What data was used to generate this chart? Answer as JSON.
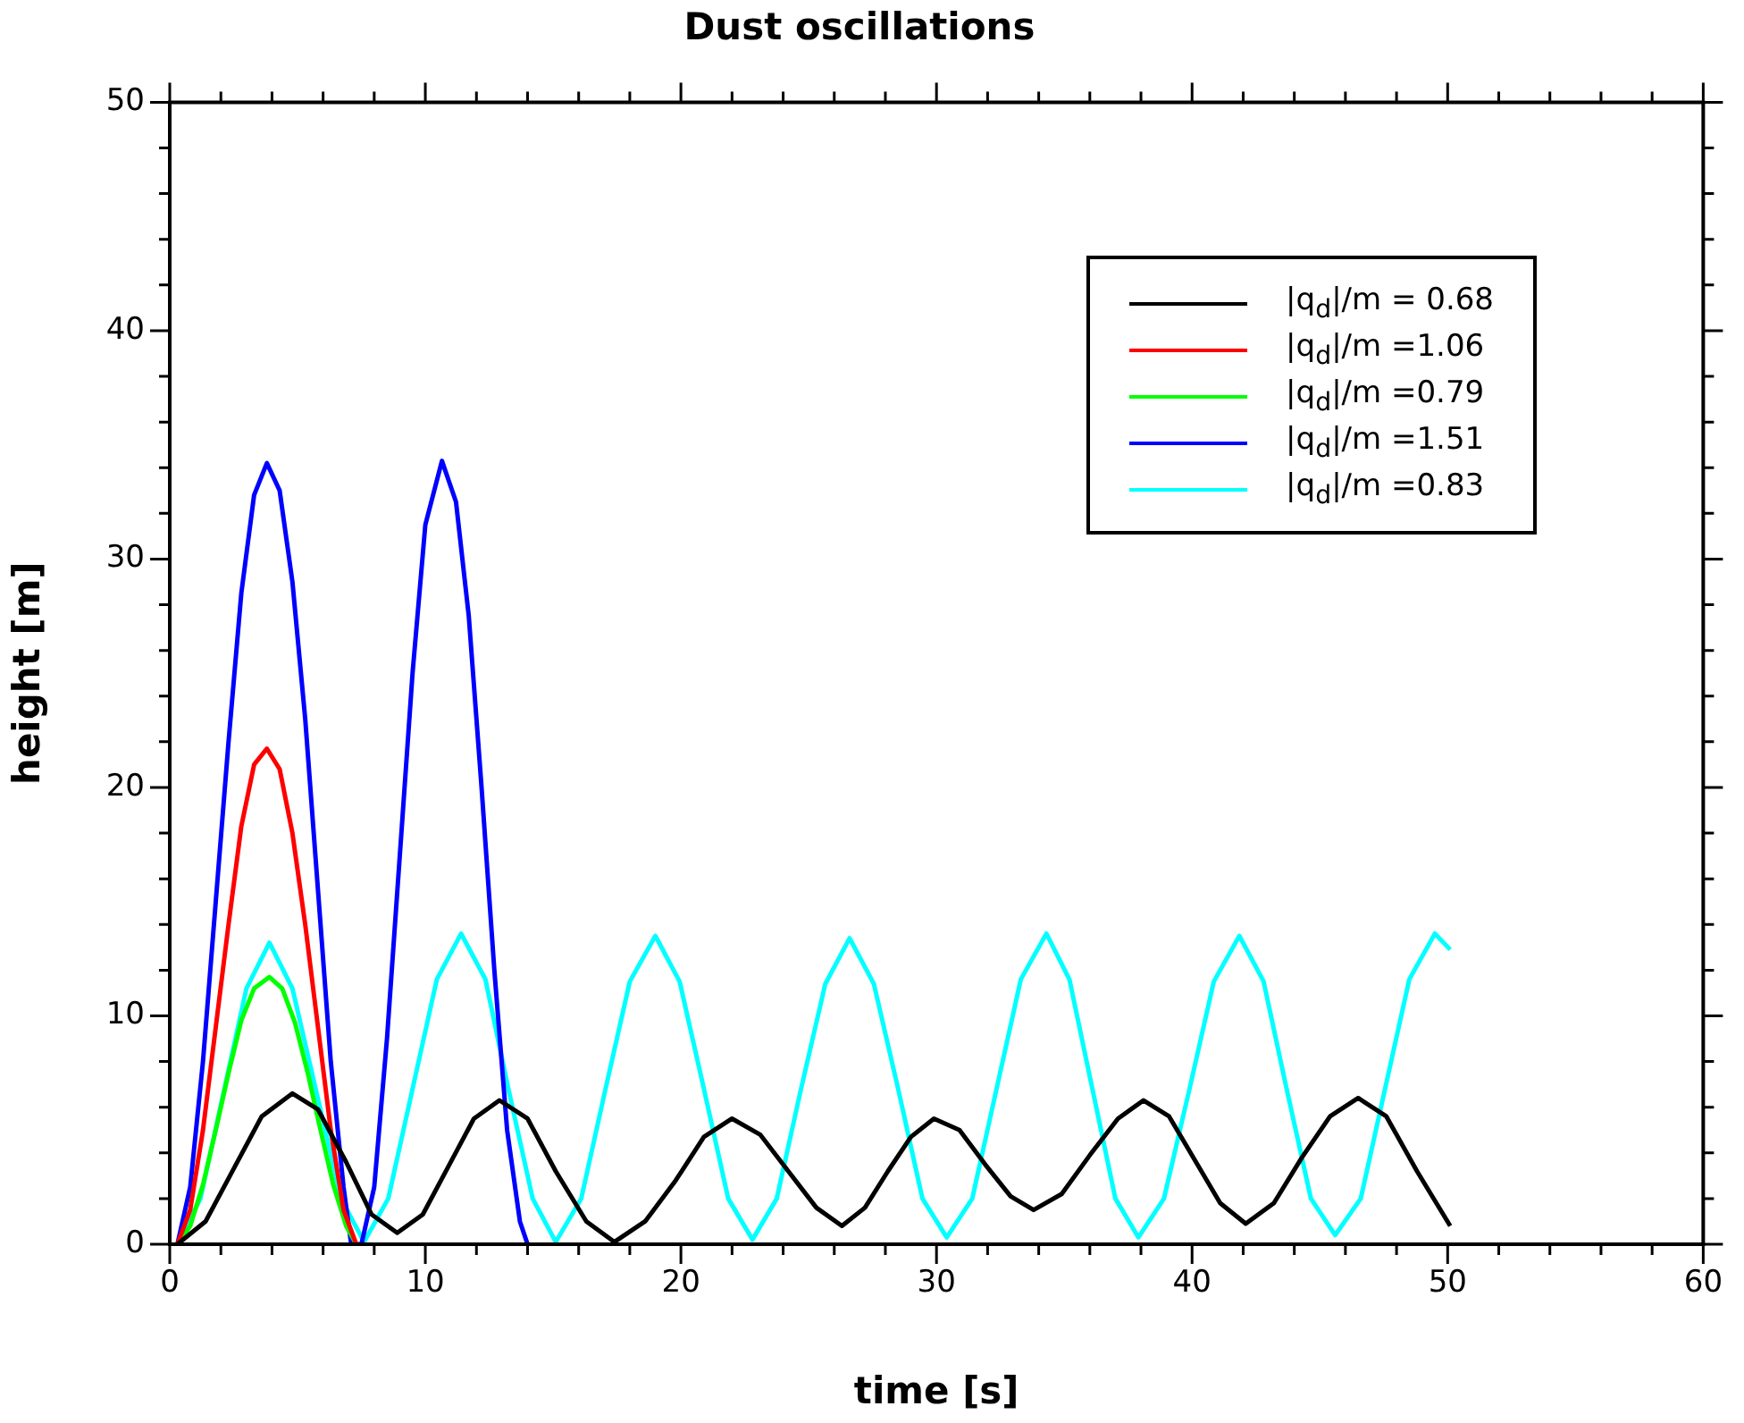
{
  "chart_data": {
    "type": "line",
    "title": "Dust oscillations",
    "xlabel": "time [s]",
    "ylabel": "height [m]",
    "legend": "top right",
    "marker": "none",
    "xlim": [
      0,
      60
    ],
    "ylim": [
      0,
      50
    ],
    "xticks": [
      0,
      {
        "value": 2,
        "label": null
      },
      {
        "value": 4,
        "label": null
      },
      {
        "value": 6,
        "label": null
      },
      {
        "value": 8,
        "label": null
      },
      10,
      {
        "value": 12,
        "label": null
      },
      {
        "value": 14,
        "label": null
      },
      {
        "value": 16,
        "label": null
      },
      {
        "value": 18,
        "label": null
      },
      20,
      {
        "value": 22,
        "label": null
      },
      {
        "value": 24,
        "label": null
      },
      {
        "value": 26,
        "label": null
      },
      {
        "value": 28,
        "label": null
      },
      30,
      {
        "value": 32,
        "label": null
      },
      {
        "value": 34,
        "label": null
      },
      {
        "value": 36,
        "label": null
      },
      {
        "value": 38,
        "label": null
      },
      40,
      {
        "value": 42,
        "label": null
      },
      {
        "value": 44,
        "label": null
      },
      {
        "value": 46,
        "label": null
      },
      {
        "value": 48,
        "label": null
      },
      50,
      {
        "value": 52,
        "label": null
      },
      {
        "value": 54,
        "label": null
      },
      {
        "value": 56,
        "label": null
      },
      {
        "value": 58,
        "label": null
      },
      60
    ],
    "yticks": [
      0,
      {
        "value": 2,
        "label": null
      },
      {
        "value": 4,
        "label": null
      },
      {
        "value": 6,
        "label": null
      },
      {
        "value": 8,
        "label": null
      },
      10,
      {
        "value": 12,
        "label": null
      },
      {
        "value": 14,
        "label": null
      },
      {
        "value": 16,
        "label": null
      },
      {
        "value": 18,
        "label": null
      },
      20,
      {
        "value": 22,
        "label": null
      },
      {
        "value": 24,
        "label": null
      },
      {
        "value": 26,
        "label": null
      },
      {
        "value": 28,
        "label": null
      },
      30,
      {
        "value": 32,
        "label": null
      },
      {
        "value": 34,
        "label": null
      },
      {
        "value": 36,
        "label": null
      },
      {
        "value": 38,
        "label": null
      },
      40,
      {
        "value": 42,
        "label": null
      },
      {
        "value": 44,
        "label": null
      },
      {
        "value": 46,
        "label": null
      },
      {
        "value": 48,
        "label": null
      },
      50
    ],
    "series": [
      {
        "name": "|q$_{d}$|/m = 0.68",
        "color": "#000000",
        "x": [
          0.3,
          1.4,
          2.5,
          3.6,
          4.8,
          5.8,
          6.9,
          7.9,
          8.9,
          9.9,
          10.9,
          11.9,
          12.9,
          14.0,
          15.1,
          16.3,
          17.4,
          18.6,
          19.8,
          20.9,
          22.0,
          23.1,
          24.2,
          25.3,
          26.3,
          27.2,
          28.1,
          29.0,
          29.9,
          30.9,
          31.9,
          32.9,
          33.8,
          34.9,
          36.0,
          37.1,
          38.1,
          39.1,
          40.1,
          41.1,
          42.1,
          43.2,
          44.3,
          45.4,
          46.5,
          47.6,
          48.8,
          50.1
        ],
        "values": [
          0,
          1,
          3.3,
          5.6,
          6.6,
          5.9,
          3.6,
          1.3,
          0.5,
          1.3,
          3.4,
          5.5,
          6.3,
          5.5,
          3.2,
          1,
          0.1,
          1,
          2.8,
          4.7,
          5.5,
          4.8,
          3.2,
          1.6,
          0.8,
          1.6,
          3.2,
          4.7,
          5.5,
          5,
          3.5,
          2.1,
          1.5,
          2.2,
          3.9,
          5.5,
          6.3,
          5.6,
          3.7,
          1.8,
          0.9,
          1.8,
          3.8,
          5.6,
          6.4,
          5.6,
          3.2,
          0.8
        ]
      },
      {
        "name": "|q$_{d}$|/m =1.06",
        "color": "#ff0000",
        "x": [
          0.3,
          0.8,
          1.3,
          1.8,
          2.3,
          2.8,
          3.3,
          3.8,
          4.3,
          4.8,
          5.3,
          5.8,
          6.3,
          6.8,
          7.3
        ],
        "values": [
          0,
          1.5,
          5,
          9.5,
          14,
          18.3,
          21,
          21.7,
          20.8,
          18,
          14,
          9.5,
          5,
          1.5,
          0
        ]
      },
      {
        "name": "|q$_{d}$|/m =0.79",
        "color": "#00ff00",
        "x": [
          0.3,
          0.8,
          1.3,
          1.8,
          2.3,
          2.8,
          3.3,
          3.9,
          4.4,
          4.9,
          5.4,
          5.9,
          6.4,
          6.9,
          7.3
        ],
        "values": [
          0,
          0.8,
          2.6,
          5,
          7.5,
          9.8,
          11.2,
          11.7,
          11.2,
          9.7,
          7.5,
          5,
          2.6,
          0.8,
          0
        ]
      },
      {
        "name": "|q$_{d}$|/m =1.51",
        "color": "#0000ff",
        "x": [
          0.3,
          0.8,
          1.3,
          1.8,
          2.3,
          2.8,
          3.3,
          3.8,
          4.3,
          4.8,
          5.3,
          5.8,
          6.3,
          6.8,
          7.1,
          7.5,
          8.0,
          8.5,
          9.0,
          9.5,
          10.0,
          10.65,
          11.2,
          11.7,
          12.2,
          12.7,
          13.2,
          13.7,
          14.0
        ],
        "values": [
          0,
          2.5,
          8,
          15,
          22,
          28.5,
          32.8,
          34.2,
          33,
          29,
          23,
          15.5,
          8,
          2.5,
          0,
          0,
          2.5,
          9,
          17,
          25,
          31.5,
          34.3,
          32.5,
          27.5,
          20,
          12,
          5,
          1,
          0
        ]
      },
      {
        "name": "|q$_{d}$|/m =0.83",
        "color": "#00ffff",
        "x": [
          0.3,
          1.2,
          2.1,
          3.0,
          3.9,
          4.8,
          5.75,
          6.7,
          7.6,
          8.55,
          9.5,
          10.45,
          11.4,
          12.35,
          13.25,
          14.2,
          15.1,
          16.1,
          17.05,
          18.0,
          19.0,
          19.95,
          20.9,
          21.85,
          22.8,
          23.75,
          24.7,
          25.65,
          26.6,
          27.55,
          28.5,
          29.45,
          30.4,
          31.4,
          32.35,
          33.3,
          34.3,
          35.2,
          36.1,
          37.0,
          37.9,
          38.9,
          39.9,
          40.85,
          41.85,
          42.8,
          43.7,
          44.65,
          45.6,
          46.6,
          47.55,
          48.5,
          49.5,
          50.1
        ],
        "values": [
          0,
          2,
          6.6,
          11.2,
          13.2,
          11.2,
          6.6,
          2,
          0.1,
          2,
          6.8,
          11.6,
          13.6,
          11.6,
          6.8,
          2,
          0.1,
          2,
          6.8,
          11.5,
          13.5,
          11.5,
          6.8,
          2,
          0.2,
          2,
          6.8,
          11.4,
          13.4,
          11.4,
          6.8,
          2,
          0.3,
          2,
          6.8,
          11.6,
          13.6,
          11.6,
          6.8,
          2,
          0.3,
          2,
          6.8,
          11.5,
          13.5,
          11.5,
          6.8,
          2,
          0.4,
          2,
          6.8,
          11.6,
          13.6,
          12.9
        ]
      }
    ]
  }
}
